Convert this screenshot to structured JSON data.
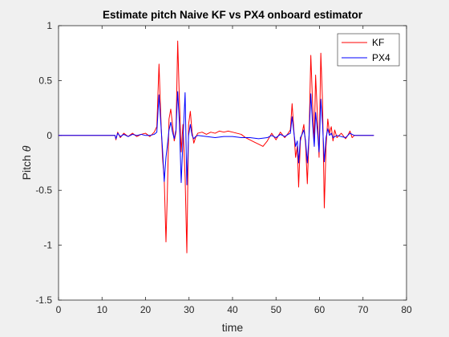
{
  "chart_data": {
    "type": "line",
    "title": "Estimate pitch Naive KF vs PX4 onboard estimator",
    "xlabel": "time",
    "ylabel_text": "Pitch ",
    "ylabel_symbol": "θ",
    "xlim": [
      0,
      80
    ],
    "ylim": [
      -1.5,
      1
    ],
    "x_ticks": [
      "0",
      "10",
      "20",
      "30",
      "40",
      "50",
      "60",
      "70",
      "80"
    ],
    "y_ticks": [
      "1",
      "0.5",
      "0",
      "-0.5",
      "-1",
      "-1.5"
    ],
    "grid": false,
    "legend_position": "top-right",
    "series": [
      {
        "name": "KF",
        "color": "#ff0000",
        "points": [
          [
            0,
            0
          ],
          [
            13,
            0
          ],
          [
            13.2,
            -0.04
          ],
          [
            13.6,
            0.03
          ],
          [
            14.2,
            -0.02
          ],
          [
            15,
            0.02
          ],
          [
            16,
            -0.01
          ],
          [
            17,
            0.02
          ],
          [
            18,
            -0.01
          ],
          [
            19,
            0.01
          ],
          [
            20,
            0.02
          ],
          [
            21,
            -0.01
          ],
          [
            22,
            0.03
          ],
          [
            22.6,
            0.08
          ],
          [
            23.1,
            0.65
          ],
          [
            23.5,
            0.18
          ],
          [
            23.9,
            -0.2
          ],
          [
            24.3,
            -0.4
          ],
          [
            24.7,
            -0.97
          ],
          [
            25.0,
            -0.55
          ],
          [
            25.4,
            0.15
          ],
          [
            25.8,
            0.24
          ],
          [
            26.2,
            0.1
          ],
          [
            26.6,
            -0.05
          ],
          [
            27.0,
            0.03
          ],
          [
            27.4,
            0.86
          ],
          [
            27.8,
            0.3
          ],
          [
            28.2,
            -0.15
          ],
          [
            28.6,
            0.1
          ],
          [
            29.1,
            -0.38
          ],
          [
            29.5,
            -1.07
          ],
          [
            29.9,
            0.1
          ],
          [
            30.3,
            0.22
          ],
          [
            30.7,
            0.03
          ],
          [
            31.1,
            -0.07
          ],
          [
            31.5,
            -0.02
          ],
          [
            32,
            0.02
          ],
          [
            33,
            0.03
          ],
          [
            34,
            0.01
          ],
          [
            35,
            0.03
          ],
          [
            36,
            0.02
          ],
          [
            37,
            0.04
          ],
          [
            38,
            0.03
          ],
          [
            39,
            0.04
          ],
          [
            40,
            0.03
          ],
          [
            41,
            0.02
          ],
          [
            42,
            0.01
          ],
          [
            43,
            -0.02
          ],
          [
            44,
            -0.04
          ],
          [
            45,
            -0.06
          ],
          [
            46,
            -0.08
          ],
          [
            47,
            -0.1
          ],
          [
            48,
            -0.05
          ],
          [
            49,
            0.02
          ],
          [
            50,
            -0.04
          ],
          [
            51,
            0.03
          ],
          [
            52,
            -0.02
          ],
          [
            52.8,
            0.02
          ],
          [
            53.3,
            0.05
          ],
          [
            53.7,
            0.29
          ],
          [
            54.1,
            0.05
          ],
          [
            54.5,
            -0.2
          ],
          [
            54.9,
            -0.1
          ],
          [
            55.2,
            -0.47
          ],
          [
            55.6,
            -0.05
          ],
          [
            56,
            0.02
          ],
          [
            56.4,
            0.1
          ],
          [
            56.8,
            -0.08
          ],
          [
            57.2,
            -0.44
          ],
          [
            57.6,
            0.0
          ],
          [
            58.0,
            0.73
          ],
          [
            58.4,
            0.3
          ],
          [
            58.8,
            -0.05
          ],
          [
            59.1,
            0.55
          ],
          [
            59.5,
            0.2
          ],
          [
            59.9,
            -0.2
          ],
          [
            60.3,
            0.75
          ],
          [
            60.7,
            0.3
          ],
          [
            61.1,
            -0.66
          ],
          [
            61.5,
            -0.1
          ],
          [
            61.9,
            0.15
          ],
          [
            62.3,
            0.02
          ],
          [
            62.7,
            0.08
          ],
          [
            63.1,
            -0.05
          ],
          [
            63.5,
            0.05
          ],
          [
            64,
            -0.02
          ],
          [
            65,
            0.02
          ],
          [
            66,
            -0.03
          ],
          [
            66.5,
            0.0
          ],
          [
            67,
            0.04
          ],
          [
            67.5,
            -0.02
          ],
          [
            68,
            0.0
          ],
          [
            72.5,
            0.0
          ]
        ]
      },
      {
        "name": "PX4",
        "color": "#0000ff",
        "points": [
          [
            0,
            0
          ],
          [
            13,
            0
          ],
          [
            13.2,
            -0.03
          ],
          [
            13.6,
            0.02
          ],
          [
            14.2,
            -0.01
          ],
          [
            15,
            0.01
          ],
          [
            16,
            -0.01
          ],
          [
            17,
            0.01
          ],
          [
            18,
            0.0
          ],
          [
            19,
            0.01
          ],
          [
            20,
            0.0
          ],
          [
            21,
            0.0
          ],
          [
            22,
            0.01
          ],
          [
            22.6,
            0.03
          ],
          [
            23.1,
            0.37
          ],
          [
            23.5,
            0.12
          ],
          [
            23.9,
            -0.12
          ],
          [
            24.3,
            -0.42
          ],
          [
            24.7,
            -0.2
          ],
          [
            25.0,
            -0.1
          ],
          [
            25.4,
            0.05
          ],
          [
            25.8,
            0.12
          ],
          [
            26.2,
            0.03
          ],
          [
            26.6,
            -0.03
          ],
          [
            27.0,
            0.05
          ],
          [
            27.4,
            0.4
          ],
          [
            27.8,
            0.1
          ],
          [
            28.2,
            -0.43
          ],
          [
            28.6,
            -0.05
          ],
          [
            29.1,
            0.39
          ],
          [
            29.5,
            -0.45
          ],
          [
            29.9,
            0.0
          ],
          [
            30.3,
            0.1
          ],
          [
            30.7,
            0.0
          ],
          [
            31.1,
            -0.03
          ],
          [
            31.5,
            -0.01
          ],
          [
            32,
            0.0
          ],
          [
            34,
            -0.01
          ],
          [
            36,
            -0.02
          ],
          [
            38,
            -0.01
          ],
          [
            40,
            -0.01
          ],
          [
            42,
            -0.02
          ],
          [
            44,
            -0.02
          ],
          [
            46,
            -0.03
          ],
          [
            48,
            -0.02
          ],
          [
            49,
            0.0
          ],
          [
            50,
            -0.02
          ],
          [
            51,
            0.01
          ],
          [
            52,
            -0.01
          ],
          [
            52.8,
            0.01
          ],
          [
            53.3,
            0.02
          ],
          [
            53.7,
            0.17
          ],
          [
            54.1,
            0.03
          ],
          [
            54.5,
            -0.1
          ],
          [
            54.9,
            -0.05
          ],
          [
            55.2,
            -0.25
          ],
          [
            55.6,
            -0.02
          ],
          [
            56,
            0.01
          ],
          [
            56.4,
            0.05
          ],
          [
            56.8,
            -0.05
          ],
          [
            57.2,
            -0.25
          ],
          [
            57.6,
            0.0
          ],
          [
            58.0,
            0.38
          ],
          [
            58.4,
            0.1
          ],
          [
            58.8,
            -0.1
          ],
          [
            59.1,
            0.21
          ],
          [
            59.5,
            0.05
          ],
          [
            59.9,
            -0.15
          ],
          [
            60.3,
            0.33
          ],
          [
            60.7,
            0.1
          ],
          [
            61.1,
            -0.24
          ],
          [
            61.5,
            -0.02
          ],
          [
            61.9,
            0.06
          ],
          [
            62.3,
            0.0
          ],
          [
            62.7,
            0.02
          ],
          [
            63.1,
            -0.02
          ],
          [
            64,
            0.0
          ],
          [
            66,
            -0.02
          ],
          [
            66.5,
            0.0
          ],
          [
            67,
            0.02
          ],
          [
            68,
            0.0
          ],
          [
            72.5,
            0.0
          ]
        ]
      }
    ]
  }
}
